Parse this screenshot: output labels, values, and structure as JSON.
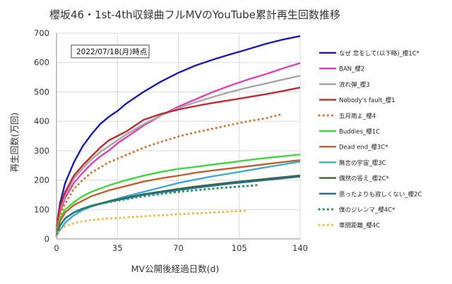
{
  "chart_data": {
    "type": "line",
    "title": "櫻坂46・1st-4th収録曲フルMVのYouTube累計再生回数推移",
    "annotation": "2022/07/18(月)時点",
    "xlabel": "MV公開後経過日数(d)",
    "ylabel": "再生回数(万回)",
    "xlim": [
      0,
      140
    ],
    "ylim": [
      0,
      700
    ],
    "xticks": [
      0,
      35,
      70,
      105,
      140
    ],
    "yticks": [
      0,
      100,
      200,
      300,
      400,
      500,
      600,
      700
    ],
    "grid": true,
    "legend_position": "right",
    "series": [
      {
        "name": "なぜ 恋をして(以下略)_櫻1C*",
        "color": "#1a1ab4",
        "style": "solid",
        "x": [
          0,
          2,
          5,
          10,
          15,
          20,
          25,
          30,
          35,
          40,
          50,
          60,
          70,
          80,
          90,
          100,
          110,
          120,
          130,
          140
        ],
        "y": [
          40,
          120,
          190,
          260,
          315,
          355,
          390,
          415,
          435,
          460,
          500,
          535,
          565,
          590,
          610,
          628,
          645,
          663,
          678,
          690
        ]
      },
      {
        "name": "BAN_櫻2",
        "color": "#e03cbd",
        "style": "solid",
        "x": [
          0,
          2,
          5,
          10,
          15,
          20,
          25,
          30,
          35,
          40,
          50,
          60,
          70,
          80,
          90,
          100,
          110,
          120,
          130,
          140
        ],
        "y": [
          30,
          90,
          140,
          190,
          225,
          255,
          280,
          300,
          325,
          345,
          385,
          420,
          450,
          475,
          500,
          522,
          542,
          560,
          580,
          598
        ]
      },
      {
        "name": "流れ弾_櫻3",
        "color": "#a6a6a6",
        "style": "solid",
        "x": [
          0,
          2,
          5,
          10,
          15,
          20,
          25,
          30,
          35,
          40,
          50,
          60,
          70,
          80,
          90,
          100,
          110,
          120,
          130,
          140
        ],
        "y": [
          30,
          100,
          150,
          205,
          240,
          270,
          295,
          315,
          335,
          355,
          390,
          420,
          445,
          465,
          483,
          500,
          515,
          528,
          542,
          555
        ]
      },
      {
        "name": "Nobody's fault_櫻1",
        "color": "#c0292c",
        "style": "solid",
        "x": [
          0,
          2,
          5,
          10,
          15,
          20,
          25,
          30,
          35,
          40,
          50,
          60,
          70,
          80,
          90,
          100,
          110,
          120,
          130,
          140
        ],
        "y": [
          40,
          110,
          160,
          215,
          250,
          280,
          310,
          335,
          350,
          365,
          405,
          425,
          440,
          452,
          463,
          472,
          482,
          492,
          503,
          515
        ]
      },
      {
        "name": "五月雨よ_櫻4",
        "color": "#e0782c",
        "style": "dotted",
        "x": [
          0,
          2,
          5,
          10,
          15,
          20,
          30,
          40,
          50,
          60,
          70,
          80,
          90,
          100,
          110,
          120,
          130
        ],
        "y": [
          30,
          80,
          120,
          170,
          200,
          225,
          260,
          285,
          310,
          330,
          348,
          363,
          375,
          388,
          400,
          410,
          425
        ]
      },
      {
        "name": "Buddies_櫻1C",
        "color": "#3cd83c",
        "style": "solid",
        "x": [
          0,
          2,
          5,
          10,
          15,
          20,
          30,
          40,
          50,
          60,
          70,
          80,
          90,
          100,
          110,
          120,
          130,
          140
        ],
        "y": [
          20,
          70,
          100,
          125,
          145,
          160,
          182,
          200,
          215,
          228,
          238,
          245,
          253,
          260,
          268,
          275,
          281,
          287
        ]
      },
      {
        "name": "Dead end_櫻3C*",
        "color": "#c0612c",
        "style": "solid",
        "x": [
          0,
          2,
          5,
          10,
          15,
          20,
          30,
          40,
          50,
          60,
          70,
          80,
          90,
          100,
          110,
          120,
          130,
          140
        ],
        "y": [
          20,
          60,
          90,
          115,
          130,
          145,
          165,
          180,
          195,
          206,
          215,
          225,
          233,
          240,
          247,
          254,
          261,
          268
        ]
      },
      {
        "name": "無言の宇宙_櫻3C",
        "color": "#3aaad4",
        "style": "solid",
        "x": [
          0,
          2,
          5,
          10,
          15,
          20,
          30,
          40,
          50,
          60,
          70,
          80,
          90,
          100,
          110,
          120,
          130,
          140
        ],
        "y": [
          10,
          30,
          55,
          80,
          98,
          110,
          128,
          145,
          160,
          175,
          190,
          202,
          213,
          223,
          233,
          243,
          253,
          263
        ]
      },
      {
        "name": "偶然の答え_櫻2C*",
        "color": "#3a6a2a",
        "style": "solid",
        "x": [
          0,
          2,
          5,
          10,
          15,
          20,
          30,
          40,
          50,
          60,
          70,
          80,
          90,
          100,
          110,
          120,
          130,
          140
        ],
        "y": [
          15,
          45,
          70,
          90,
          103,
          113,
          128,
          140,
          152,
          161,
          170,
          178,
          185,
          192,
          198,
          204,
          210,
          216
        ]
      },
      {
        "name": "思ったよりも寂しくない_櫻2C",
        "color": "#2a6a9a",
        "style": "solid",
        "x": [
          0,
          2,
          5,
          10,
          15,
          20,
          30,
          40,
          50,
          60,
          70,
          80,
          90,
          100,
          110,
          120,
          130,
          140
        ],
        "y": [
          15,
          45,
          70,
          90,
          102,
          112,
          126,
          138,
          150,
          158,
          166,
          174,
          181,
          188,
          194,
          200,
          206,
          212
        ]
      },
      {
        "name": "僕のジレンマ_櫻4C*",
        "color": "#1e9a5a",
        "style": "dotted",
        "x": [
          0,
          2,
          5,
          10,
          15,
          20,
          30,
          40,
          50,
          60,
          70,
          80,
          90,
          100,
          110,
          115
        ],
        "y": [
          10,
          45,
          70,
          90,
          103,
          112,
          125,
          135,
          145,
          153,
          160,
          166,
          171,
          176,
          180,
          183
        ]
      },
      {
        "name": "車間距離_櫻4C",
        "color": "#f0be3c",
        "style": "dotted",
        "x": [
          0,
          2,
          5,
          10,
          15,
          20,
          30,
          40,
          50,
          60,
          70,
          80,
          90,
          100,
          110
        ],
        "y": [
          10,
          30,
          43,
          53,
          60,
          64,
          69,
          73,
          77,
          80,
          84,
          87,
          90,
          93,
          96
        ]
      }
    ]
  }
}
